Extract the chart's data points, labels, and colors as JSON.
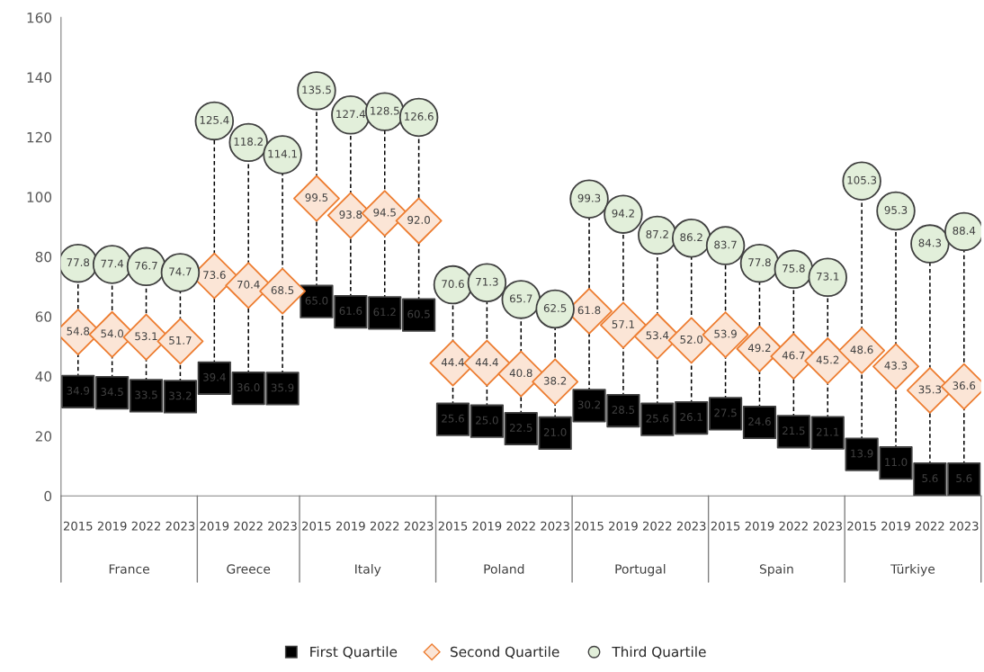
{
  "chart_data": {
    "type": "scatter",
    "categories": [
      "2015",
      "2019",
      "2022",
      "2023",
      "2019",
      "2022",
      "2023",
      "2015",
      "2019",
      "2022",
      "2023",
      "2015",
      "2019",
      "2022",
      "2023",
      "2015",
      "2019",
      "2022",
      "2023",
      "2015",
      "2019",
      "2022",
      "2023",
      "2015",
      "2019",
      "2022",
      "2023"
    ],
    "annotations": [
      "France",
      "Greece",
      "Italy",
      "Poland",
      "Portugal",
      "Spain",
      "Türkiye"
    ],
    "series": [
      {
        "name": "First Quartile",
        "color": "#000000",
        "marker": "square",
        "values": [
          34.9,
          34.5,
          33.5,
          33.2,
          39.4,
          36.0,
          35.9,
          65.0,
          61.6,
          61.2,
          60.5,
          25.6,
          25.0,
          22.5,
          21.0,
          30.2,
          28.5,
          25.6,
          26.1,
          27.5,
          24.6,
          21.5,
          21.1,
          13.9,
          11.0,
          5.6,
          5.6
        ],
        "value_labels": [
          "34.9",
          "34.5",
          "33.5",
          "33.2",
          "39.4",
          "36.0",
          "35.9",
          "65.0",
          "61.6",
          "61.2",
          "60.5",
          "25.6",
          "25.0",
          "22.5",
          "21.0",
          "30.2",
          "28.5",
          "25.6",
          "26.1",
          "27.5",
          "24.6",
          "21.5",
          "21.1",
          "13.9",
          "11.0",
          "5.6",
          "5.6"
        ]
      },
      {
        "name": "Second Quartile",
        "color": "#ed7d31",
        "marker": "diamond",
        "values": [
          54.8,
          54.0,
          53.1,
          51.7,
          73.6,
          70.4,
          68.5,
          99.5,
          93.8,
          94.5,
          92.0,
          44.4,
          44.4,
          40.8,
          38.2,
          61.8,
          57.1,
          53.4,
          52.0,
          53.9,
          49.2,
          46.7,
          45.2,
          48.6,
          43.3,
          35.3,
          36.6
        ],
        "value_labels": [
          "54.8",
          "54.0",
          "53.1",
          "51.7",
          "73.6",
          "70.4",
          "68.5",
          "99.5",
          "93.8",
          "94.5",
          "92.0",
          "44.4",
          "44.4",
          "40.8",
          "38.2",
          "61.8",
          "57.1",
          "53.4",
          "52.0",
          "53.9",
          "49.2",
          "46.7",
          "45.2",
          "48.6",
          "43.3",
          "35.3",
          "36.6"
        ]
      },
      {
        "name": "Third Quartile",
        "color": "#e2efda",
        "marker": "circle",
        "values": [
          77.8,
          77.4,
          76.7,
          74.7,
          125.4,
          118.2,
          114.1,
          135.5,
          127.4,
          128.5,
          126.6,
          70.6,
          71.3,
          65.7,
          62.5,
          99.3,
          94.2,
          87.2,
          86.2,
          83.7,
          77.8,
          75.8,
          73.1,
          105.3,
          95.3,
          84.3,
          88.4
        ],
        "value_labels": [
          "77.8",
          "77.4",
          "76.7",
          "74.7",
          "125.4",
          "118.2",
          "114.1",
          "135.5",
          "127.4",
          "128.5",
          "126.6",
          "70.6",
          "71.3",
          "65.7",
          "62.5",
          "99.3",
          "94.2",
          "87.2",
          "86.2",
          "83.7",
          "77.8",
          "75.8",
          "73.1",
          "105.3",
          "95.3",
          "84.3",
          "88.4"
        ]
      }
    ],
    "ylim": [
      0,
      160
    ],
    "yticks": [
      0,
      20,
      40,
      60,
      80,
      100,
      120,
      140,
      160
    ],
    "grid": false,
    "legend": "bottom"
  }
}
